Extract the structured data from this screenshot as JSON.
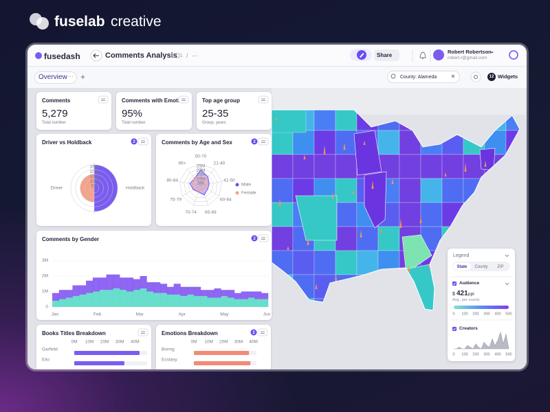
{
  "brand": {
    "name": "fuselab",
    "suffix": "creative"
  },
  "app": {
    "logo": "fusedash",
    "title": "Comments Analysis",
    "separator": "/",
    "crumb": "1",
    "more": "···",
    "share": "Share",
    "user": {
      "name": "Robert Robertson",
      "email": "robert.r@gmail.com"
    }
  },
  "toolbar": {
    "tab": "Overview",
    "tab_more": "···",
    "add": "+",
    "filter": "County: Alameda",
    "widgets_count": "12",
    "widgets": "Widgets"
  },
  "kpis": [
    {
      "title": "Comments",
      "value": "5,279",
      "caption": "Total number"
    },
    {
      "title": "Comments with Emotion",
      "value": "95%",
      "caption": "Total number"
    },
    {
      "title": "Top age group",
      "value": "25-35",
      "caption": "Group, years"
    }
  ],
  "driver_holdback": {
    "title": "Driver vs Holdback",
    "badge": "2",
    "type": "polar-area",
    "categories": [
      "Driver",
      "Holdback"
    ],
    "values": [
      15,
      25
    ],
    "colors": [
      "#f4a38c",
      "#7b5cf0"
    ],
    "rlim": [
      0,
      25
    ],
    "rticks": [
      {
        "value": 25,
        "label": "25M"
      },
      {
        "value": 20,
        "label": "20M"
      },
      {
        "value": 15,
        "label": "15M"
      },
      {
        "value": 10,
        "label": "10M"
      },
      {
        "value": 5,
        "label": "5M"
      }
    ]
  },
  "age_sex": {
    "title": "Comments by Age and Sex",
    "badge": "2",
    "type": "radar",
    "categories": [
      "00-70",
      "21-40",
      "41-50",
      "60-64",
      "65-69",
      "70-74",
      "75-79",
      "80-84",
      "85+"
    ],
    "series": [
      {
        "name": "Male",
        "color": "#6a4cf0",
        "values": [
          18,
          13,
          10,
          9,
          12,
          8,
          10,
          13,
          11
        ]
      },
      {
        "name": "Female",
        "color": "#f4a38c",
        "values": [
          10,
          11,
          8,
          6,
          7,
          6,
          9,
          10,
          12
        ]
      }
    ],
    "rlim": [
      0,
      25
    ],
    "rticks": [
      {
        "value": 25,
        "label": "25M"
      },
      {
        "value": 20,
        "label": "20M"
      },
      {
        "value": 15,
        "label": "15M"
      },
      {
        "value": 10,
        "label": "10M"
      },
      {
        "value": 5,
        "label": "5M"
      }
    ]
  },
  "gender": {
    "title": "Comments by Gender",
    "badge": "2",
    "type": "stacked-bar",
    "xticks": [
      "Jan",
      "Feb",
      "Mar",
      "Apr",
      "May",
      "Jun"
    ],
    "series": [
      {
        "color": "#4fd8c4",
        "values": [
          0.4,
          0.5,
          0.6,
          0.7,
          0.8,
          0.9,
          1.0,
          1.1,
          1.1,
          1.2,
          1.1,
          1.0,
          1.1,
          1.2,
          1.0,
          0.9,
          0.9,
          0.8,
          0.8,
          0.7,
          0.8,
          0.7,
          0.7,
          0.6,
          0.6,
          0.7,
          0.6,
          0.5,
          0.5,
          0.6,
          0.5,
          0.5
        ]
      },
      {
        "color": "#7b4cf0",
        "values": [
          0.5,
          0.6,
          0.5,
          0.7,
          0.6,
          0.8,
          0.9,
          0.8,
          1.0,
          0.9,
          0.8,
          0.9,
          0.7,
          0.8,
          0.6,
          0.7,
          0.6,
          0.5,
          0.7,
          0.6,
          0.5,
          0.6,
          0.4,
          0.5,
          0.6,
          0.4,
          0.5,
          0.4,
          0.5,
          0.4,
          0.5,
          0.4
        ]
      }
    ],
    "ylim": [
      0,
      3.6
    ],
    "yticks": [
      0,
      {
        "value": 1,
        "label": "1M"
      },
      {
        "value": 2,
        "label": "2M"
      },
      {
        "value": 3,
        "label": "3M"
      }
    ],
    "grid": true
  },
  "books": {
    "title": "Books Titles Breakdown",
    "type": "bar",
    "categories": [
      "Garfield",
      "Elio"
    ],
    "values": [
      43,
      33
    ],
    "xlim": [
      0,
      48
    ],
    "xticks": [
      {
        "value": 0,
        "label": "0M"
      },
      {
        "value": 10,
        "label": "10M"
      },
      {
        "value": 20,
        "label": "20M"
      },
      {
        "value": 30,
        "label": "30M"
      },
      {
        "value": 40,
        "label": "40M"
      }
    ],
    "color": "#7b5cf0"
  },
  "emotions": {
    "title": "Emotions Breakdown",
    "badge": "2",
    "type": "bar",
    "categories": [
      "Boring",
      "Ecstasy"
    ],
    "values": [
      37,
      38
    ],
    "xlim": [
      0,
      42
    ],
    "xticks": [
      {
        "value": 0,
        "label": "0M"
      },
      {
        "value": 10,
        "label": "10M"
      },
      {
        "value": 20,
        "label": "20M"
      },
      {
        "value": 30,
        "label": "30M"
      },
      {
        "value": 40,
        "label": "40M"
      }
    ],
    "color": "#f28a78"
  },
  "map_legend": {
    "title": "Legend",
    "tabs": [
      "State",
      "County",
      "ZIP"
    ],
    "active_tab": 0,
    "audience": {
      "label": "Audience",
      "currency": "$",
      "value": "421",
      "unit": "ppl",
      "caption": "Avg., per county",
      "colors": [
        "#7fe3d0",
        "#5b8df5",
        "#7b3ff0"
      ],
      "lim": [
        0,
        500
      ],
      "ticks": [
        0,
        100,
        200,
        300,
        400,
        500
      ]
    },
    "creators": {
      "label": "Creators",
      "color": "#9a9cab",
      "values": [
        0,
        0,
        1,
        0,
        0,
        2,
        1,
        0,
        3,
        1,
        0,
        4,
        2,
        1,
        6,
        2,
        5,
        10,
        3,
        9,
        0
      ],
      "xlim": [
        0,
        500
      ],
      "ylim": [
        0,
        10
      ],
      "ticks": [
        0,
        100,
        200,
        300,
        400,
        500
      ]
    }
  }
}
